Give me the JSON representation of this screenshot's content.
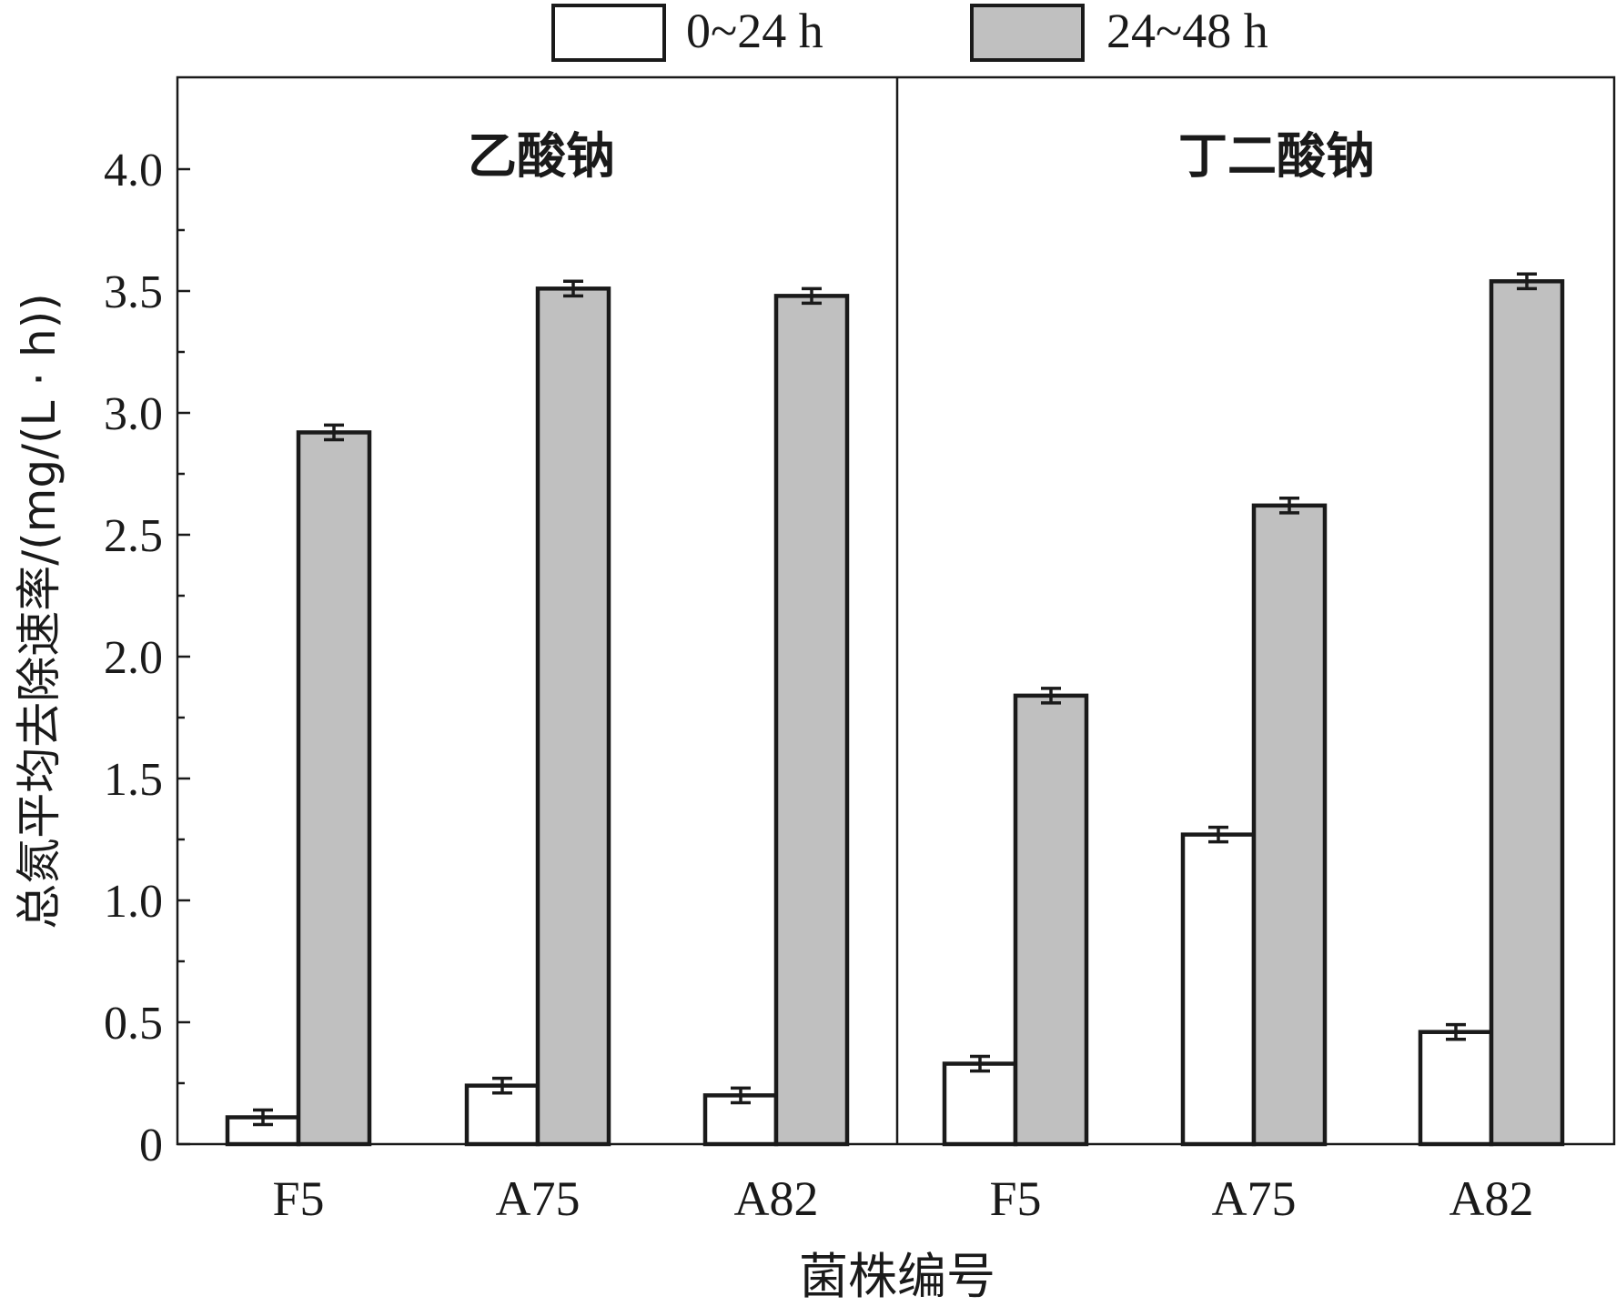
{
  "chart_data": {
    "type": "bar",
    "groups": [
      {
        "label": "乙酸钠",
        "categories": [
          "F5",
          "A75",
          "A82"
        ],
        "series": [
          {
            "name": "0~24 h",
            "values": [
              0.11,
              0.24,
              0.2
            ],
            "errors": [
              0.03,
              0.03,
              0.03
            ]
          },
          {
            "name": "24~48 h",
            "values": [
              2.92,
              3.51,
              3.48
            ],
            "errors": [
              0.03,
              0.03,
              0.03
            ]
          }
        ]
      },
      {
        "label": "丁二酸钠",
        "categories": [
          "F5",
          "A75",
          "A82"
        ],
        "series": [
          {
            "name": "0~24 h",
            "values": [
              0.33,
              1.27,
              0.46
            ],
            "errors": [
              0.03,
              0.03,
              0.03
            ]
          },
          {
            "name": "24~48 h",
            "values": [
              1.84,
              2.62,
              3.54
            ],
            "errors": [
              0.03,
              0.03,
              0.03
            ]
          }
        ]
      }
    ],
    "legend": [
      "0~24 h",
      "24~48 h"
    ],
    "legend_position": "top-center",
    "xlabel": "菌株编号",
    "ylabel": "总氮平均去除速率/(mg/(L · h))",
    "ylim": [
      0,
      4.37
    ],
    "yticks": [
      "0",
      "0.5",
      "1.0",
      "1.5",
      "2.0",
      "2.5",
      "3.0",
      "3.5",
      "4.0"
    ],
    "ytick_values": [
      0,
      0.5,
      1.0,
      1.5,
      2.0,
      2.5,
      3.0,
      3.5,
      4.0
    ],
    "grid": false,
    "colors": {
      "series_0": "#ffffff",
      "series_1": "#c0c0c0",
      "stroke": "#1a1a1a"
    }
  }
}
